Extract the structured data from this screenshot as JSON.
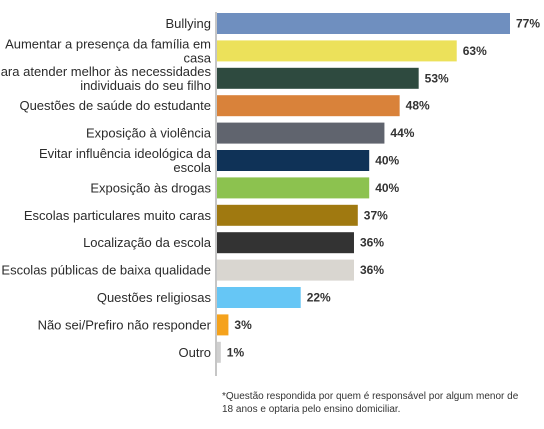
{
  "chart_data": {
    "type": "bar",
    "orientation": "horizontal",
    "value_suffix": "%",
    "xlim": [
      0,
      80
    ],
    "grid": false,
    "categories": [
      [
        "Bullying"
      ],
      [
        "Aumentar a presença da família em",
        "casa"
      ],
      [
        "Para atender melhor às necessidades",
        "individuais do seu filho"
      ],
      [
        "Questões de saúde do estudante"
      ],
      [
        "Exposição à violência"
      ],
      [
        "Evitar influência ideológica da",
        "escola"
      ],
      [
        "Exposição às drogas"
      ],
      [
        "Escolas particulares muito caras"
      ],
      [
        "Localização da escola"
      ],
      [
        "Escolas públicas de baixa qualidade"
      ],
      [
        "Questões religiosas"
      ],
      [
        "Não sei/Prefiro não responder"
      ],
      [
        "Outro"
      ]
    ],
    "values": [
      77,
      63,
      53,
      48,
      44,
      40,
      40,
      37,
      36,
      36,
      22,
      3,
      1
    ],
    "colors": [
      "#6f8fbf",
      "#ece15a",
      "#2e4a3f",
      "#d9823a",
      "#60646e",
      "#0f3257",
      "#8cc24f",
      "#a07910",
      "#333333",
      "#d9d6d0",
      "#66c6f5",
      "#f5a21c",
      "#cfcfcf"
    ],
    "footnote": "*Questão respondida por quem é responsável por algum menor de 18 anos e optaria pelo ensino domiciliar."
  }
}
